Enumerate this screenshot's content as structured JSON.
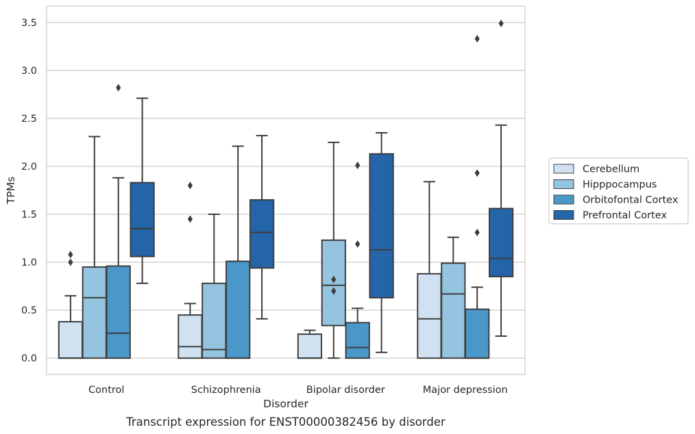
{
  "caption": "Transcript expression for ENST00000382456 by disorder",
  "chart_data": {
    "type": "box",
    "xlabel": "Disorder",
    "ylabel": "TPMs",
    "ylim": [
      -0.17,
      3.67
    ],
    "yticks": [
      "0.0",
      "0.5",
      "1.0",
      "1.5",
      "2.0",
      "2.5",
      "3.0",
      "3.5"
    ],
    "grid": "horizontal",
    "legend_position": "right",
    "categories": [
      "Control",
      "Schizophrenia",
      "Bipolar disorder",
      "Major depression"
    ],
    "series": [
      {
        "name": "Cerebellum",
        "color": "#d0e1f2",
        "boxes": [
          {
            "whisker_low": 0.0,
            "q1": 0.0,
            "median": 0.0,
            "q3": 0.38,
            "whisker_high": 0.65,
            "outliers": [
              1.0,
              1.08
            ]
          },
          {
            "whisker_low": 0.0,
            "q1": 0.0,
            "median": 0.12,
            "q3": 0.45,
            "whisker_high": 0.57,
            "outliers": [
              1.45,
              1.8
            ]
          },
          {
            "whisker_low": 0.0,
            "q1": 0.0,
            "median": 0.0,
            "q3": 0.25,
            "whisker_high": 0.29,
            "outliers": []
          },
          {
            "whisker_low": 0.0,
            "q1": 0.0,
            "median": 0.41,
            "q3": 0.88,
            "whisker_high": 1.84,
            "outliers": []
          }
        ]
      },
      {
        "name": "Hipppocampus",
        "color": "#94c4df",
        "boxes": [
          {
            "whisker_low": 0.0,
            "q1": 0.0,
            "median": 0.63,
            "q3": 0.95,
            "whisker_high": 2.31,
            "outliers": []
          },
          {
            "whisker_low": 0.0,
            "q1": 0.0,
            "median": 0.09,
            "q3": 0.78,
            "whisker_high": 1.5,
            "outliers": []
          },
          {
            "whisker_low": 0.0,
            "q1": 0.34,
            "median": 0.76,
            "q3": 1.23,
            "whisker_high": 2.25,
            "outliers": [
              0.7,
              0.82
            ]
          },
          {
            "whisker_low": 0.0,
            "q1": 0.0,
            "median": 0.67,
            "q3": 0.99,
            "whisker_high": 1.26,
            "outliers": []
          }
        ]
      },
      {
        "name": "Orbitofontal Cortex",
        "color": "#4a98c9",
        "boxes": [
          {
            "whisker_low": 0.0,
            "q1": 0.0,
            "median": 0.26,
            "q3": 0.96,
            "whisker_high": 1.88,
            "outliers": [
              2.82
            ]
          },
          {
            "whisker_low": 0.0,
            "q1": 0.0,
            "median": 0.0,
            "q3": 1.01,
            "whisker_high": 2.21,
            "outliers": []
          },
          {
            "whisker_low": 0.0,
            "q1": 0.0,
            "median": 0.11,
            "q3": 0.37,
            "whisker_high": 0.52,
            "outliers": [
              1.19,
              2.01
            ]
          },
          {
            "whisker_low": 0.0,
            "q1": 0.0,
            "median": 0.0,
            "q3": 0.51,
            "whisker_high": 0.74,
            "outliers": [
              1.31,
              1.93,
              3.33
            ]
          }
        ]
      },
      {
        "name": "Prefrontal Cortex",
        "color": "#2464a9",
        "boxes": [
          {
            "whisker_low": 0.78,
            "q1": 1.06,
            "median": 1.35,
            "q3": 1.83,
            "whisker_high": 2.71,
            "outliers": []
          },
          {
            "whisker_low": 0.41,
            "q1": 0.94,
            "median": 1.31,
            "q3": 1.65,
            "whisker_high": 2.32,
            "outliers": []
          },
          {
            "whisker_low": 0.06,
            "q1": 0.63,
            "median": 1.13,
            "q3": 2.13,
            "whisker_high": 2.35,
            "outliers": []
          },
          {
            "whisker_low": 0.23,
            "q1": 0.85,
            "median": 1.04,
            "q3": 1.56,
            "whisker_high": 2.43,
            "outliers": [
              3.49
            ]
          }
        ]
      }
    ]
  }
}
